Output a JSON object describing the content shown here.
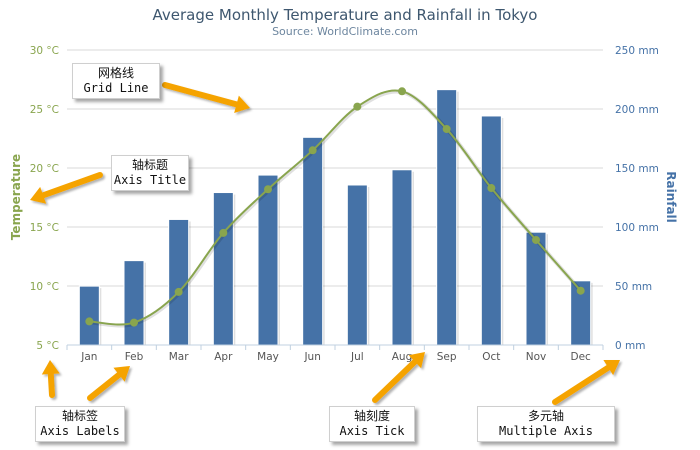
{
  "chart_data": {
    "type": "bar+line",
    "title": "Average Monthly Temperature and Rainfall in Tokyo",
    "subtitle": "Source: WorldClimate.com",
    "categories": [
      "Jan",
      "Feb",
      "Mar",
      "Apr",
      "May",
      "Jun",
      "Jul",
      "Aug",
      "Sep",
      "Oct",
      "Nov",
      "Dec"
    ],
    "series": [
      {
        "name": "Rainfall",
        "type": "bar",
        "axis": "right",
        "unit": "mm",
        "values": [
          49.9,
          71.5,
          106.4,
          129.2,
          144.0,
          176.0,
          135.6,
          148.5,
          216.4,
          194.1,
          95.6,
          54.4
        ]
      },
      {
        "name": "Temperature",
        "type": "spline",
        "axis": "left",
        "unit": "°C",
        "values": [
          7.0,
          6.9,
          9.5,
          14.5,
          18.2,
          21.5,
          25.2,
          26.5,
          23.3,
          18.3,
          13.9,
          9.6
        ]
      }
    ],
    "y_left": {
      "title": "Temperature",
      "min": 5,
      "max": 30,
      "ticks": [
        5,
        10,
        15,
        20,
        25,
        30
      ],
      "tick_labels": [
        "5 °C",
        "10 °C",
        "15 °C",
        "20 °C",
        "25 °C",
        "30 °C"
      ]
    },
    "y_right": {
      "title": "Rainfall",
      "min": 0,
      "max": 250,
      "ticks": [
        0,
        50,
        100,
        150,
        200,
        250
      ],
      "tick_labels": [
        "0 mm",
        "50 mm",
        "100 mm",
        "150 mm",
        "200 mm",
        "250 mm"
      ]
    },
    "grid": true,
    "legend": "none"
  },
  "colors": {
    "bar": "#4572a7",
    "line": "#89a54e",
    "title": "#3e576f",
    "subtitle": "#6d869f",
    "arrow": "#f5a300",
    "grid": "#d8d8d8"
  },
  "annotations": {
    "grid_line": {
      "zh": "网格线",
      "en": "Grid Line"
    },
    "axis_title": {
      "zh": "轴标题",
      "en": "Axis Title"
    },
    "axis_labels": {
      "zh": "轴标签",
      "en": "Axis Labels"
    },
    "axis_tick": {
      "zh": "轴刻度",
      "en": "Axis Tick"
    },
    "multiple_axis": {
      "zh": "多元轴",
      "en": "Multiple Axis"
    }
  }
}
